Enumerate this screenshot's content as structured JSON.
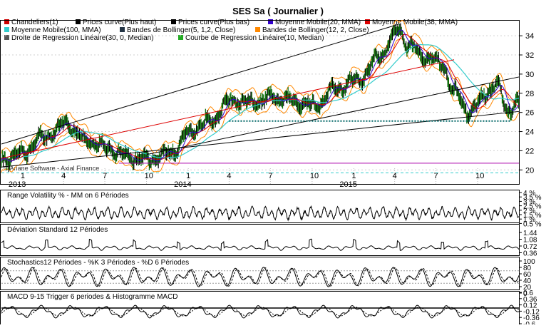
{
  "title": "SES Sa  ( Journalier )",
  "copyright": "© Ariane Software - Axial Finance",
  "legend": [
    {
      "label": "Chandeliers(1)",
      "color": "#cc0000"
    },
    {
      "label": "Prices curve(Plus haut)",
      "color": "#000000"
    },
    {
      "label": "Prices curve(Plus bas)",
      "color": "#000000"
    },
    {
      "label": "Moyenne Mobile(20, MMA)",
      "color": "#3300cc"
    },
    {
      "label": "Moyenne Mobile(38, MMA)",
      "color": "#dd0000"
    },
    {
      "label": "Moyenne Mobile(100, MMA)",
      "color": "#33cccc"
    },
    {
      "label": "Bandes de Bollinger(5, 1,2, Close)",
      "color": "#223344"
    },
    {
      "label": "Bandes de Bollinger(12, 2, Close)",
      "color": "#ff8800"
    },
    {
      "label": "Droite de Regression Linéaire(30, 0, Median)",
      "color": "#555555"
    },
    {
      "label": "Courbe de Regression Linéaire(10, Median)",
      "color": "#22aa22"
    }
  ],
  "x_axis": {
    "month_ticks": [
      "1",
      "4",
      "7",
      "10",
      "1",
      "4",
      "7",
      "10",
      "1",
      "4",
      "7",
      "10"
    ],
    "years": [
      "2013",
      "2014",
      "2015"
    ]
  },
  "panels": [
    {
      "title": "Range Volatility % - MM on 6 Périodes",
      "ticks": [
        "4 %",
        "3.5 %",
        "3 %",
        "2.5 %",
        "2 %",
        "1.5 %",
        "1 %",
        "0.5 %"
      ]
    },
    {
      "title": "Déviation Standard 12 Périodes",
      "ticks": [
        "1.44",
        "1.08",
        "0.72",
        "0.36"
      ]
    },
    {
      "title": "Stochastics12 Périodes  -  %K 3 Périodes  -  %D 6 Périodes",
      "ticks": [
        "100",
        "80",
        "60",
        "40",
        "20",
        "0"
      ]
    },
    {
      "title": "MACD 9-15   Trigger 6 periodes & Histogramme MACD",
      "ticks": [
        "0.6",
        "0.36",
        "0.12",
        "-0.12",
        "-0.36",
        "-0.6"
      ]
    }
  ],
  "chart_data": [
    {
      "type": "line",
      "name": "main",
      "ylim": [
        19.5,
        35.5
      ],
      "y_ticks": [
        20,
        22,
        24,
        26,
        28,
        30,
        32,
        34
      ],
      "x_range": [
        "2012-11-15",
        "2015-12-31"
      ],
      "price_anchors": [
        {
          "x": "2012-11-15",
          "y": 21.0
        },
        {
          "x": "2012-12-20",
          "y": 21.5
        },
        {
          "x": "2013-02-20",
          "y": 23.5
        },
        {
          "x": "2013-04-10",
          "y": 24.8
        },
        {
          "x": "2013-05-20",
          "y": 23.0
        },
        {
          "x": "2013-07-10",
          "y": 22.3
        },
        {
          "x": "2013-08-10",
          "y": 21.5
        },
        {
          "x": "2013-10-01",
          "y": 21.0
        },
        {
          "x": "2013-11-25",
          "y": 21.8
        },
        {
          "x": "2013-12-31",
          "y": 23.8
        },
        {
          "x": "2014-02-20",
          "y": 25.2
        },
        {
          "x": "2014-04-05",
          "y": 27.3
        },
        {
          "x": "2014-05-20",
          "y": 27.0
        },
        {
          "x": "2014-07-10",
          "y": 27.5
        },
        {
          "x": "2014-08-20",
          "y": 27.2
        },
        {
          "x": "2014-10-10",
          "y": 26.7
        },
        {
          "x": "2014-11-20",
          "y": 28.5
        },
        {
          "x": "2015-01-15",
          "y": 29.5
        },
        {
          "x": "2015-03-01",
          "y": 32.0
        },
        {
          "x": "2015-04-10",
          "y": 34.7
        },
        {
          "x": "2015-05-01",
          "y": 33.0
        },
        {
          "x": "2015-06-10",
          "y": 31.8
        },
        {
          "x": "2015-07-15",
          "y": 31.0
        },
        {
          "x": "2015-08-10",
          "y": 28.0
        },
        {
          "x": "2015-09-15",
          "y": 26.0
        },
        {
          "x": "2015-10-20",
          "y": 28.0
        },
        {
          "x": "2015-11-15",
          "y": 28.8
        },
        {
          "x": "2015-12-05",
          "y": 26.3
        },
        {
          "x": "2015-12-31",
          "y": 26.8
        }
      ],
      "lines": [
        {
          "name": "upper channel",
          "from": {
            "x": "2012-11-15",
            "y": 22.7
          },
          "to": {
            "x": "2015-04-10",
            "y": 35.2
          },
          "color": "#000000"
        },
        {
          "name": "lower channel",
          "from": {
            "x": "2012-11-15",
            "y": 20.3
          },
          "to": {
            "x": "2015-12-31",
            "y": 26.1
          },
          "color": "#000000"
        },
        {
          "name": "upper right channel",
          "from": {
            "x": "2013-10-01",
            "y": 21.6
          },
          "to": {
            "x": "2015-12-31",
            "y": 29.7
          },
          "color": "#000000"
        },
        {
          "name": "red trend",
          "from": {
            "x": "2012-11-15",
            "y": 21.2
          },
          "to": {
            "x": "2015-08-10",
            "y": 31.5
          },
          "color": "#dd0000"
        }
      ],
      "support_level": 25.1,
      "magenta_level": 20.7
    }
  ]
}
